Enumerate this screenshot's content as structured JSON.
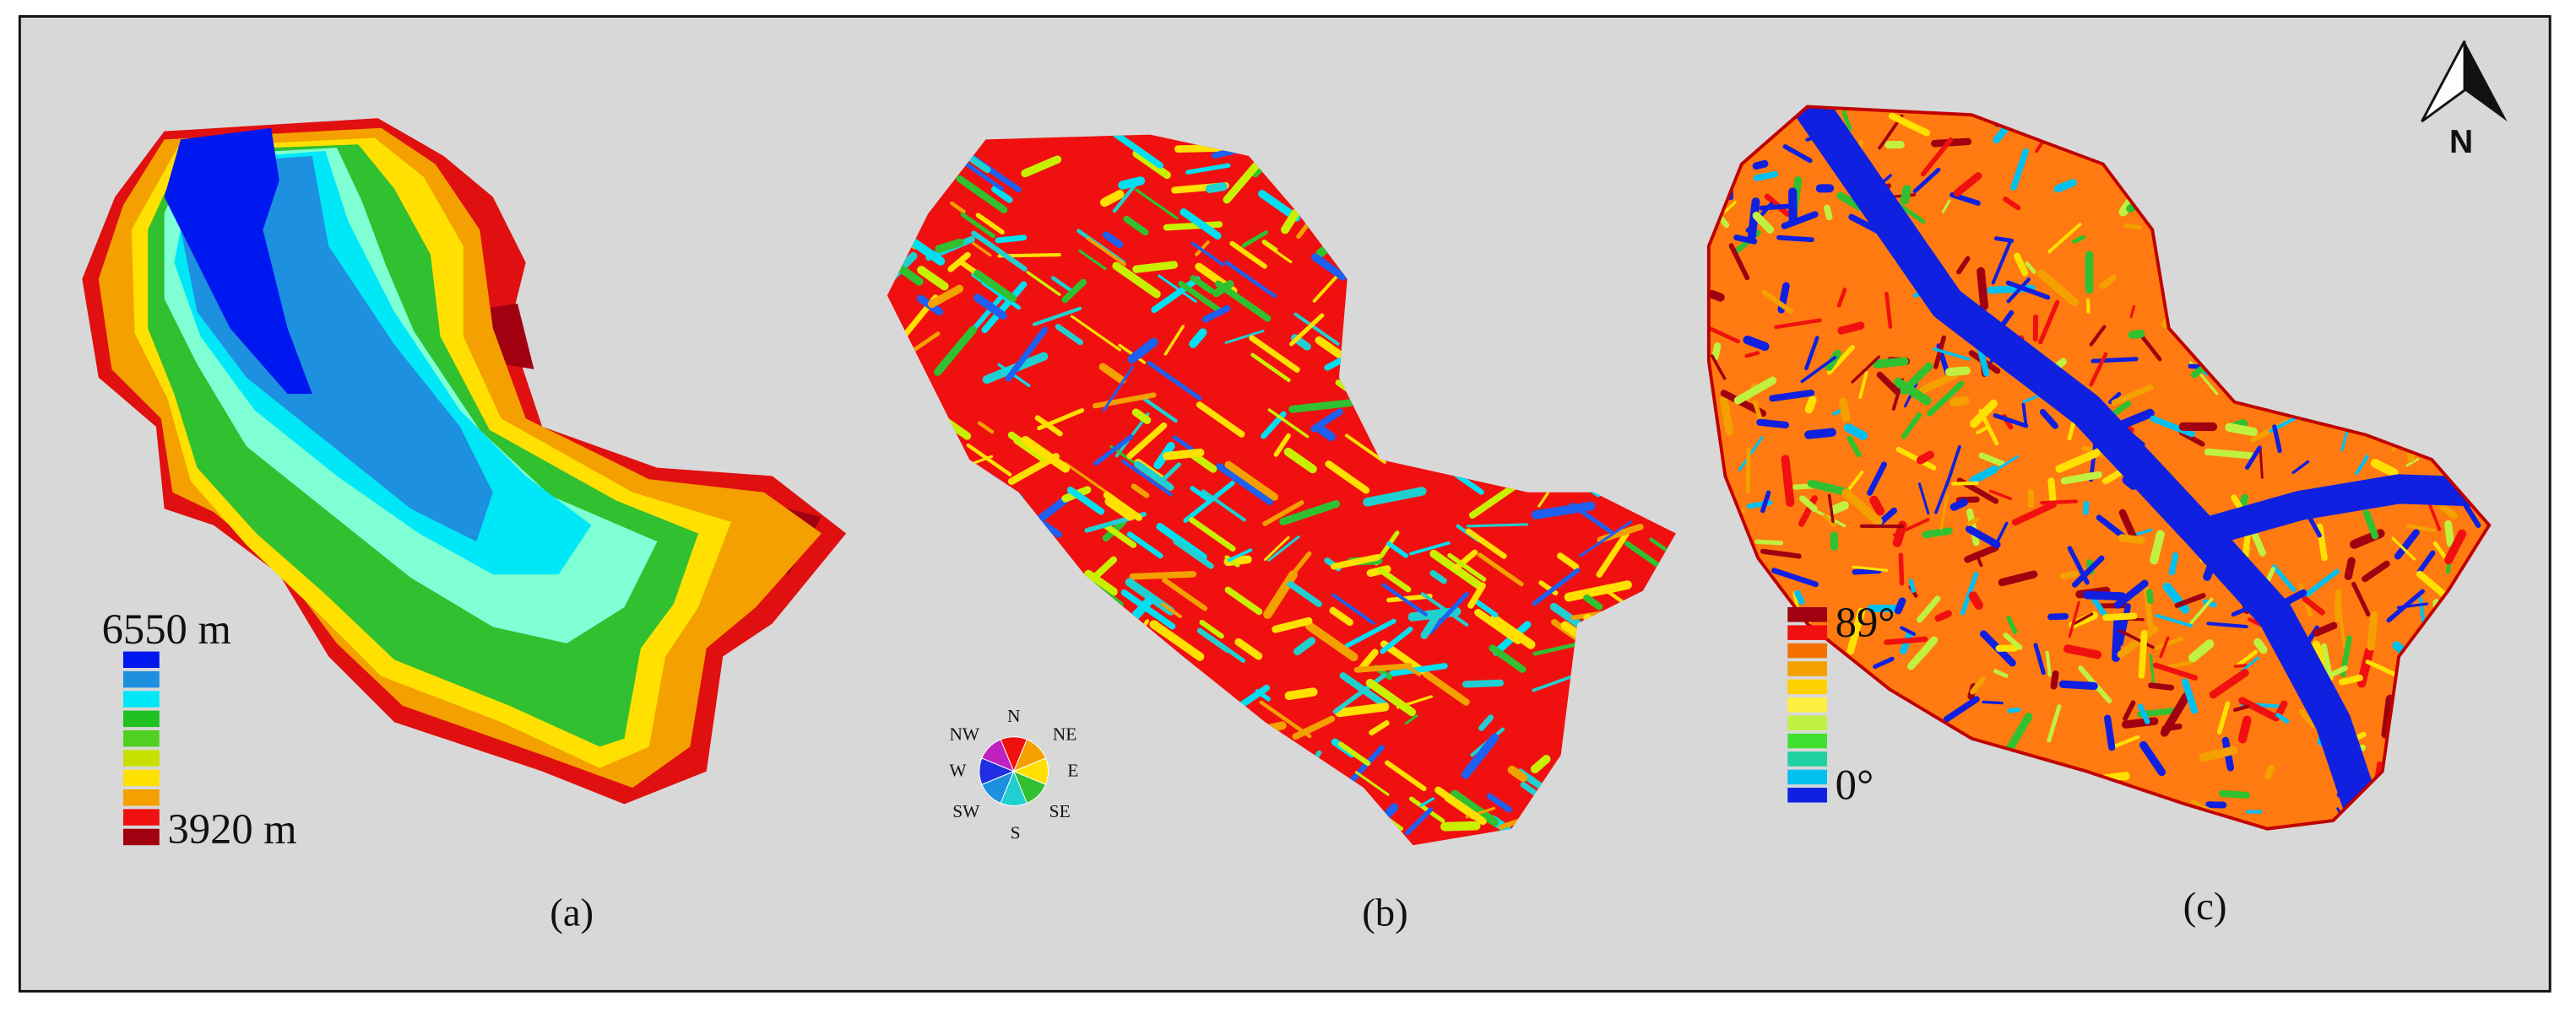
{
  "panels": [
    {
      "label": "(a)",
      "legend": {
        "max": "6550 m",
        "min": "3920 m"
      }
    },
    {
      "label": "(b)",
      "legend": {
        "directions": [
          "N",
          "NE",
          "E",
          "SE",
          "S",
          "SW",
          "W",
          "NW"
        ]
      }
    },
    {
      "label": "(c)",
      "legend": {
        "max": "89°",
        "min": "0°"
      }
    }
  ],
  "north_arrow": {
    "label": "N"
  }
}
